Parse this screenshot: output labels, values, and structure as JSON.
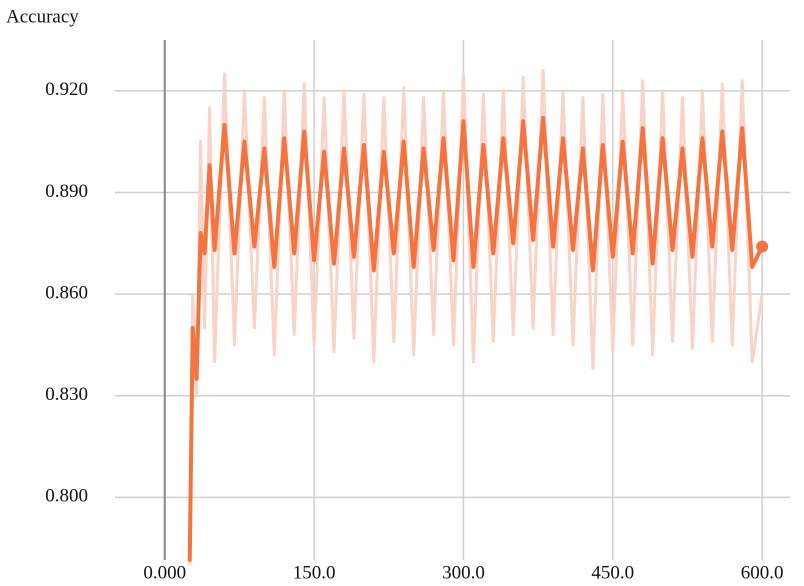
{
  "chart_data": {
    "type": "line",
    "title": "Accuracy",
    "x": [
      25,
      28,
      32,
      36,
      40,
      45,
      50,
      60,
      70,
      80,
      90,
      100,
      110,
      120,
      130,
      140,
      150,
      160,
      170,
      180,
      190,
      200,
      210,
      220,
      230,
      240,
      250,
      260,
      270,
      280,
      290,
      300,
      310,
      320,
      330,
      340,
      350,
      360,
      370,
      380,
      390,
      400,
      410,
      420,
      430,
      440,
      450,
      460,
      470,
      480,
      490,
      500,
      510,
      520,
      530,
      540,
      550,
      560,
      570,
      580,
      590,
      600
    ],
    "series": [
      {
        "color": "#f9d3c6",
        "values": [
          0.78,
          0.86,
          0.83,
          0.905,
          0.85,
          0.915,
          0.84,
          0.925,
          0.845,
          0.92,
          0.85,
          0.918,
          0.842,
          0.92,
          0.848,
          0.922,
          0.845,
          0.918,
          0.843,
          0.92,
          0.847,
          0.919,
          0.84,
          0.918,
          0.846,
          0.921,
          0.842,
          0.918,
          0.848,
          0.92,
          0.845,
          0.925,
          0.84,
          0.919,
          0.846,
          0.92,
          0.848,
          0.924,
          0.85,
          0.926,
          0.848,
          0.92,
          0.845,
          0.918,
          0.838,
          0.919,
          0.843,
          0.92,
          0.845,
          0.923,
          0.842,
          0.92,
          0.846,
          0.918,
          0.844,
          0.92,
          0.846,
          0.922,
          0.845,
          0.923,
          0.84,
          0.86
        ]
      },
      {
        "color": "#f4733f",
        "values": [
          0.781,
          0.85,
          0.835,
          0.878,
          0.872,
          0.898,
          0.873,
          0.91,
          0.872,
          0.905,
          0.874,
          0.903,
          0.868,
          0.906,
          0.872,
          0.908,
          0.87,
          0.902,
          0.869,
          0.903,
          0.871,
          0.904,
          0.867,
          0.902,
          0.872,
          0.905,
          0.868,
          0.903,
          0.873,
          0.906,
          0.87,
          0.911,
          0.868,
          0.904,
          0.872,
          0.906,
          0.875,
          0.911,
          0.876,
          0.912,
          0.874,
          0.906,
          0.873,
          0.903,
          0.867,
          0.904,
          0.871,
          0.905,
          0.872,
          0.909,
          0.869,
          0.906,
          0.873,
          0.903,
          0.871,
          0.906,
          0.874,
          0.908,
          0.873,
          0.909,
          0.868,
          0.874
        ]
      }
    ],
    "xlim": [
      -50,
      628
    ],
    "ylim": [
      0.7815,
      0.935
    ],
    "xticks": [
      {
        "value": 0,
        "label": "0.000"
      },
      {
        "value": 150,
        "label": "150.0"
      },
      {
        "value": 300,
        "label": "300.0"
      },
      {
        "value": 450,
        "label": "450.0"
      },
      {
        "value": 600,
        "label": "600.0"
      }
    ],
    "yticks": [
      {
        "value": 0.8,
        "label": "0.800"
      },
      {
        "value": 0.83,
        "label": "0.830"
      },
      {
        "value": 0.86,
        "label": "0.860"
      },
      {
        "value": 0.89,
        "label": "0.890"
      },
      {
        "value": 0.92,
        "label": "0.920"
      }
    ],
    "grid": true
  }
}
